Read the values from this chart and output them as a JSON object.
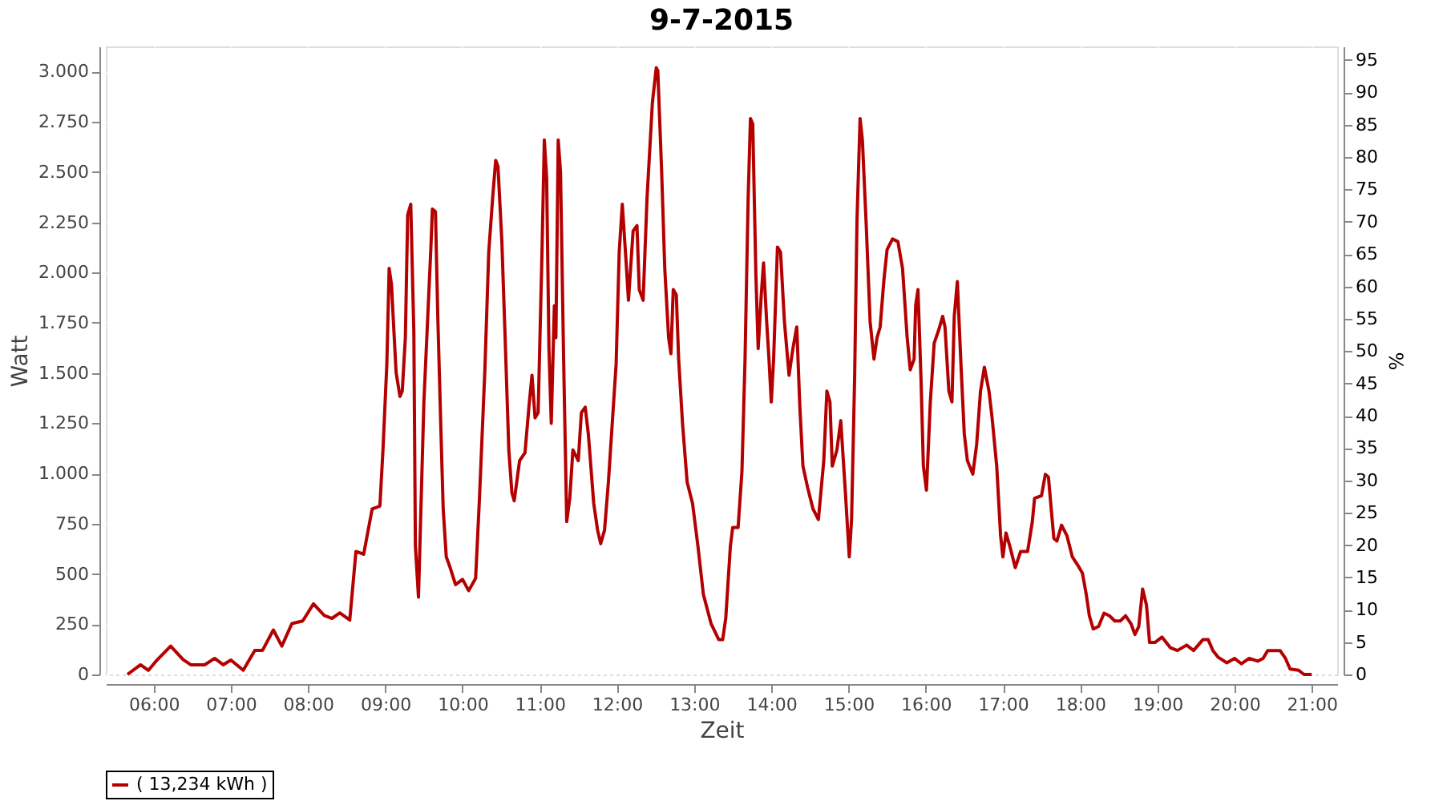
{
  "chart_data": {
    "type": "line",
    "title": "9-7-2015",
    "xlabel": "Zeit",
    "ylabel": "Watt",
    "y2label": "%",
    "x": [
      5.66,
      5.83,
      5.93,
      6.03,
      6.22,
      6.38,
      6.48,
      6.66,
      6.79,
      6.9,
      7.0,
      7.16,
      7.31,
      7.41,
      7.55,
      7.66,
      7.79,
      7.93,
      8.07,
      8.21,
      8.31,
      8.41,
      8.54,
      8.62,
      8.72,
      8.83,
      8.93,
      8.97,
      9.02,
      9.05,
      9.08,
      9.14,
      9.19,
      9.22,
      9.26,
      9.29,
      9.33,
      9.37,
      9.39,
      9.43,
      9.5,
      9.59,
      9.61,
      9.65,
      9.68,
      9.72,
      9.75,
      9.79,
      9.84,
      9.91,
      10.0,
      10.08,
      10.17,
      10.22,
      10.29,
      10.34,
      10.39,
      10.43,
      10.46,
      10.51,
      10.55,
      10.6,
      10.64,
      10.67,
      10.74,
      10.81,
      10.86,
      10.9,
      10.94,
      10.98,
      11.03,
      11.06,
      11.09,
      11.12,
      11.15,
      11.19,
      11.21,
      11.24,
      11.27,
      11.31,
      11.35,
      11.39,
      11.43,
      11.5,
      11.54,
      11.59,
      11.63,
      11.7,
      11.75,
      11.79,
      11.84,
      11.89,
      11.94,
      11.99,
      12.03,
      12.07,
      12.12,
      12.15,
      12.21,
      12.26,
      12.29,
      12.34,
      12.39,
      12.46,
      12.51,
      12.53,
      12.58,
      12.62,
      12.67,
      12.7,
      12.73,
      12.77,
      12.8,
      12.85,
      12.91,
      12.98,
      13.05,
      13.12,
      13.22,
      13.32,
      13.37,
      13.41,
      13.47,
      13.5,
      13.57,
      13.62,
      13.66,
      13.7,
      13.73,
      13.76,
      13.8,
      13.83,
      13.87,
      13.9,
      13.94,
      13.97,
      14.0,
      14.03,
      14.08,
      14.12,
      14.17,
      14.23,
      14.28,
      14.33,
      14.37,
      14.41,
      14.47,
      14.54,
      14.61,
      14.68,
      14.72,
      14.76,
      14.79,
      14.85,
      14.9,
      14.96,
      15.01,
      15.04,
      15.08,
      15.11,
      15.15,
      15.18,
      15.23,
      15.28,
      15.33,
      15.37,
      15.41,
      15.46,
      15.5,
      15.57,
      15.64,
      15.7,
      15.76,
      15.8,
      15.85,
      15.87,
      15.9,
      15.94,
      15.97,
      16.01,
      16.06,
      16.11,
      16.17,
      16.22,
      16.25,
      16.3,
      16.34,
      16.37,
      16.41,
      16.46,
      16.5,
      16.54,
      16.61,
      16.66,
      16.71,
      16.76,
      16.82,
      16.86,
      16.92,
      16.97,
      17.0,
      17.04,
      17.09,
      17.16,
      17.23,
      17.32,
      17.38,
      17.41,
      17.5,
      17.55,
      17.59,
      17.62,
      17.66,
      17.7,
      17.76,
      17.83,
      17.9,
      17.97,
      18.03,
      18.08,
      18.12,
      18.17,
      18.24,
      18.31,
      18.38,
      18.45,
      18.52,
      18.59,
      18.66,
      18.71,
      18.76,
      18.81,
      18.86,
      18.9,
      18.97,
      19.06,
      19.17,
      19.26,
      19.38,
      19.47,
      19.59,
      19.66,
      19.72,
      19.79,
      19.9,
      20.0,
      20.09,
      20.19,
      20.3,
      20.37,
      20.43,
      20.52,
      20.59,
      20.66,
      20.72,
      20.83,
      20.9,
      21.0
    ],
    "series": [
      {
        "name": "( 13,234 kWh )",
        "color": "#b40000",
        "values": [
          0,
          48,
          20,
          66,
          141,
          74,
          48,
          48,
          80,
          48,
          72,
          21,
          120,
          120,
          221,
          141,
          253,
          266,
          351,
          293,
          279,
          306,
          271,
          612,
          598,
          824,
          838,
          1117,
          1543,
          2021,
          1941,
          1503,
          1383,
          1410,
          1676,
          2287,
          2340,
          1702,
          638,
          385,
          1356,
          2117,
          2316,
          2303,
          1782,
          1223,
          824,
          585,
          532,
          447,
          473,
          417,
          478,
          877,
          1516,
          2101,
          2367,
          2558,
          2527,
          2154,
          1702,
          1117,
          904,
          864,
          1064,
          1104,
          1330,
          1489,
          1277,
          1303,
          2101,
          2660,
          2473,
          1622,
          1250,
          1835,
          1676,
          2660,
          2500,
          1569,
          760,
          877,
          1117,
          1064,
          1303,
          1330,
          1197,
          851,
          718,
          651,
          718,
          957,
          1250,
          1543,
          2101,
          2340,
          2048,
          1862,
          2207,
          2234,
          1915,
          1862,
          2367,
          2846,
          3019,
          3005,
          2500,
          2021,
          1676,
          1596,
          1915,
          1888,
          1569,
          1250,
          957,
          851,
          638,
          399,
          253,
          173,
          173,
          279,
          638,
          731,
          731,
          1011,
          1569,
          2367,
          2766,
          2739,
          1995,
          1622,
          1888,
          2048,
          1756,
          1569,
          1356,
          1569,
          2127,
          2101,
          1756,
          1489,
          1622,
          1729,
          1330,
          1037,
          931,
          824,
          771,
          1064,
          1410,
          1356,
          1037,
          1117,
          1263,
          904,
          585,
          771,
          1489,
          2260,
          2766,
          2660,
          2234,
          1756,
          1569,
          1676,
          1729,
          1968,
          2114,
          2167,
          2154,
          2021,
          1676,
          1516,
          1569,
          1835,
          1915,
          1463,
          1037,
          917,
          1356,
          1649,
          1716,
          1782,
          1729,
          1410,
          1356,
          1782,
          1955,
          1516,
          1197,
          1064,
          997,
          1144,
          1410,
          1529,
          1410,
          1277,
          1037,
          691,
          585,
          704,
          638,
          532,
          612,
          612,
          757,
          876,
          889,
          996,
          982,
          850,
          677,
          664,
          743,
          690,
          584,
          544,
          504,
          398,
          292,
          226,
          239,
          305,
          292,
          266,
          266,
          292,
          252,
          199,
          239,
          425,
          345,
          159,
          159,
          186,
          133,
          119,
          146,
          119,
          173,
          173,
          119,
          85,
          58,
          80,
          53,
          80,
          66,
          80,
          119,
          119,
          119,
          80,
          27,
          21,
          0,
          0
        ]
      }
    ],
    "xlim": [
      5.38,
      21.33
    ],
    "xticks": [
      {
        "value": 6,
        "label": "06:00"
      },
      {
        "value": 7,
        "label": "07:00"
      },
      {
        "value": 8,
        "label": "08:00"
      },
      {
        "value": 9,
        "label": "09:00"
      },
      {
        "value": 10,
        "label": "10:00"
      },
      {
        "value": 11,
        "label": "11:00"
      },
      {
        "value": 12,
        "label": "12:00"
      },
      {
        "value": 13,
        "label": "13:00"
      },
      {
        "value": 14,
        "label": "14:00"
      },
      {
        "value": 15,
        "label": "15:00"
      },
      {
        "value": 16,
        "label": "16:00"
      },
      {
        "value": 17,
        "label": "17:00"
      },
      {
        "value": 18,
        "label": "18:00"
      },
      {
        "value": 19,
        "label": "19:00"
      },
      {
        "value": 20,
        "label": "20:00"
      },
      {
        "value": 21,
        "label": "21:00"
      }
    ],
    "ylim": [
      0,
      3125
    ],
    "yticks": [
      0,
      250,
      500,
      750,
      {
        "value": 1000,
        "label": "1.000"
      },
      {
        "value": 1250,
        "label": "1.250"
      },
      {
        "value": 1500,
        "label": "1.500"
      },
      {
        "value": 1750,
        "label": "1.750"
      },
      {
        "value": 2000,
        "label": "2.000"
      },
      {
        "value": 2250,
        "label": "2.250"
      },
      {
        "value": 2500,
        "label": "2.500"
      },
      {
        "value": 2750,
        "label": "2.750"
      },
      {
        "value": 3000,
        "label": "3.000"
      }
    ],
    "y2lim": [
      0,
      97.1
    ],
    "y2ticks": [
      0,
      5,
      10,
      15,
      20,
      25,
      30,
      35,
      40,
      45,
      50,
      55,
      60,
      65,
      70,
      75,
      80,
      85,
      90,
      95
    ],
    "grid": true,
    "legend": "bottom"
  }
}
